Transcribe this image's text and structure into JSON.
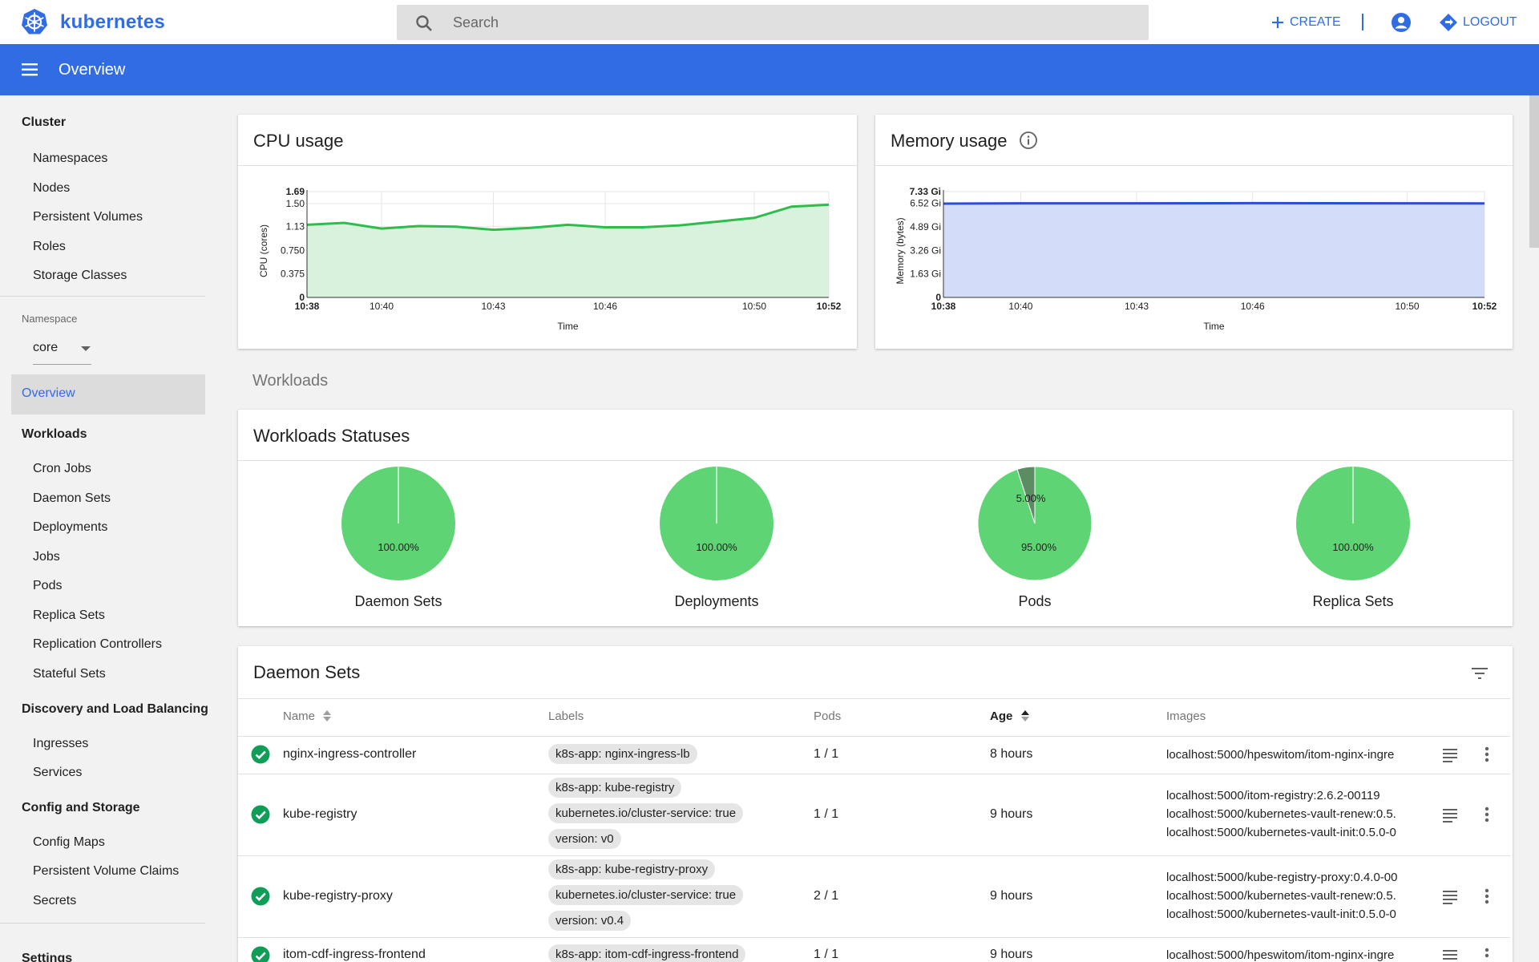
{
  "app": {
    "brand": "kubernetes",
    "search_placeholder": "Search",
    "create_label": "CREATE",
    "logout_label": "LOGOUT",
    "page_title": "Overview"
  },
  "colors": {
    "brand_blue": "#326ce5",
    "cpu_green": "#2ebd4c",
    "memory_blue": "#2a4ed8",
    "success_green": "#0f9d58"
  },
  "sidebar": {
    "cluster": {
      "label": "Cluster",
      "items": [
        "Namespaces",
        "Nodes",
        "Persistent Volumes",
        "Roles",
        "Storage Classes"
      ]
    },
    "namespace_label": "Namespace",
    "namespace_value": "core",
    "overview_label": "Overview",
    "workloads": {
      "label": "Workloads",
      "items": [
        "Cron Jobs",
        "Daemon Sets",
        "Deployments",
        "Jobs",
        "Pods",
        "Replica Sets",
        "Replication Controllers",
        "Stateful Sets"
      ]
    },
    "discovery": {
      "label": "Discovery and Load Balancing",
      "items": [
        "Ingresses",
        "Services"
      ]
    },
    "config": {
      "label": "Config and Storage",
      "items": [
        "Config Maps",
        "Persistent Volume Claims",
        "Secrets"
      ]
    },
    "settings_label": "Settings"
  },
  "chart_data": [
    {
      "type": "area",
      "title": "CPU usage",
      "xlabel": "Time",
      "ylabel": "CPU (cores)",
      "ylim": [
        0,
        1.69
      ],
      "y_ticks": [
        "0",
        "0.375",
        "0.750",
        "1.13",
        "1.50",
        "1.69"
      ],
      "x_ticks": [
        "10:38",
        "10:40",
        "10:43",
        "10:46",
        "10:50",
        "10:52"
      ],
      "x": [
        "10:38",
        "10:39",
        "10:40",
        "10:41",
        "10:42",
        "10:43",
        "10:44",
        "10:45",
        "10:46",
        "10:47",
        "10:48",
        "10:49",
        "10:50",
        "10:51",
        "10:52"
      ],
      "values": [
        1.16,
        1.19,
        1.1,
        1.14,
        1.13,
        1.08,
        1.11,
        1.16,
        1.12,
        1.12,
        1.15,
        1.21,
        1.27,
        1.45,
        1.48
      ],
      "grid": true
    },
    {
      "type": "area",
      "title": "Memory usage",
      "xlabel": "Time",
      "ylabel": "Memory (bytes)",
      "ylim": [
        0,
        7.33
      ],
      "y_ticks": [
        "0",
        "1.63 Gi",
        "3.26 Gi",
        "4.89 Gi",
        "6.52 Gi",
        "7.33 Gi"
      ],
      "x_ticks": [
        "10:38",
        "10:40",
        "10:43",
        "10:46",
        "10:50",
        "10:52"
      ],
      "x": [
        "10:38",
        "10:40",
        "10:43",
        "10:46",
        "10:50",
        "10:52"
      ],
      "values": [
        6.5,
        6.52,
        6.52,
        6.53,
        6.52,
        6.51
      ],
      "grid": true
    },
    {
      "type": "pie",
      "title": "Daemon Sets",
      "slices": [
        {
          "label": "100.00%",
          "value": 100,
          "color": "#5fd474"
        }
      ]
    },
    {
      "type": "pie",
      "title": "Deployments",
      "slices": [
        {
          "label": "100.00%",
          "value": 100,
          "color": "#5fd474"
        }
      ]
    },
    {
      "type": "pie",
      "title": "Pods",
      "slices": [
        {
          "label": "95.00%",
          "value": 95,
          "color": "#5fd474"
        },
        {
          "label": "5.00%",
          "value": 5,
          "color": "#5c8c63"
        }
      ]
    },
    {
      "type": "pie",
      "title": "Replica Sets",
      "slices": [
        {
          "label": "100.00%",
          "value": 100,
          "color": "#5fd474"
        }
      ]
    }
  ],
  "main": {
    "workloads_section": "Workloads",
    "statuses_title": "Workloads Statuses",
    "daemon_sets_title": "Daemon Sets",
    "columns": [
      "Name",
      "Labels",
      "Pods",
      "Age",
      "Images"
    ],
    "rows": [
      {
        "name": "nginx-ingress-controller",
        "labels": [
          "k8s-app: nginx-ingress-lb"
        ],
        "pods": "1 / 1",
        "age": "8 hours",
        "images": [
          "localhost:5000/hpeswitom/itom-nginx-ingre"
        ]
      },
      {
        "name": "kube-registry",
        "labels": [
          "k8s-app: kube-registry",
          "kubernetes.io/cluster-service: true",
          "version: v0"
        ],
        "pods": "1 / 1",
        "age": "9 hours",
        "images": [
          "localhost:5000/itom-registry:2.6.2-00119",
          "localhost:5000/kubernetes-vault-renew:0.5.",
          "localhost:5000/kubernetes-vault-init:0.5.0-0"
        ]
      },
      {
        "name": "kube-registry-proxy",
        "labels": [
          "k8s-app: kube-registry-proxy",
          "kubernetes.io/cluster-service: true",
          "version: v0.4"
        ],
        "pods": "2 / 1",
        "age": "9 hours",
        "images": [
          "localhost:5000/kube-registry-proxy:0.4.0-00",
          "localhost:5000/kubernetes-vault-renew:0.5.",
          "localhost:5000/kubernetes-vault-init:0.5.0-0"
        ]
      },
      {
        "name": "itom-cdf-ingress-frontend",
        "labels": [
          "k8s-app: itom-cdf-ingress-frontend"
        ],
        "pods": "1 / 1",
        "age": "9 hours",
        "images": [
          "localhost:5000/hpeswitom/itom-nginx-ingre"
        ]
      }
    ]
  }
}
